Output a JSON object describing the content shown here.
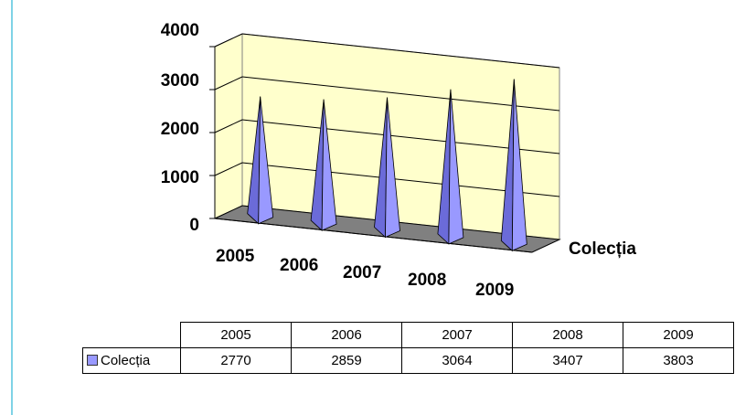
{
  "chart_data": {
    "type": "bar",
    "style": "3d-pyramid",
    "categories": [
      "2005",
      "2006",
      "2007",
      "2008",
      "2009"
    ],
    "series": [
      {
        "name": "Colecția",
        "values": [
          2770,
          2859,
          3064,
          3407,
          3803
        ]
      }
    ],
    "y_ticks": [
      "0",
      "1000",
      "2000",
      "3000",
      "4000"
    ],
    "ylim": [
      0,
      4000
    ],
    "depth_axis_label": "Colecția",
    "grid": true,
    "colors": {
      "series": "#9999ff",
      "wall": "#ffffcc",
      "floor": "#808080"
    },
    "table": {
      "headers": [
        "2005",
        "2006",
        "2007",
        "2008",
        "2009"
      ],
      "row_label": "Colecția",
      "values": [
        "2770",
        "2859",
        "3064",
        "3407",
        "3803"
      ]
    }
  }
}
